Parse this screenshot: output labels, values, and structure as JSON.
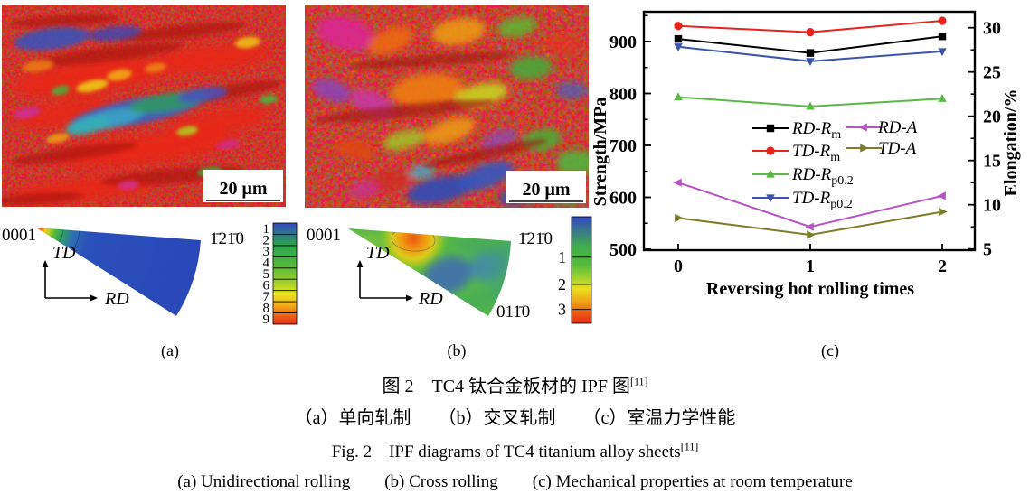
{
  "panel_a": {
    "label": "(a)",
    "scale_bar_label": "20 μm",
    "pole_figure": {
      "pole_top_left": "0001",
      "pole_top_right": "1̄21̄0",
      "axis_up": "TD",
      "axis_right": "RD",
      "colorbar_labels": [
        "1",
        "2",
        "3",
        "4",
        "5",
        "6",
        "7",
        "8",
        "9"
      ]
    }
  },
  "panel_b": {
    "label": "(b)",
    "scale_bar_label": "20 μm",
    "pole_figure": {
      "pole_top_left": "0001",
      "pole_top_right": "1̄21̄0",
      "pole_bottom_right": "011̄0",
      "axis_up": "TD",
      "axis_right": "RD",
      "colorbar_labels": [
        "1",
        "2",
        "3"
      ]
    }
  },
  "panel_c": {
    "label": "(c)"
  },
  "caption": {
    "cn_title": "图 2　TC4 钛合金板材的 IPF 图",
    "cn_ref": "[11]",
    "cn_subtitle": "（a）单向轧制　　（b）交叉轧制　　（c）室温力学性能",
    "en_title": "Fig. 2　IPF diagrams of TC4 titanium alloy sheets",
    "en_ref": "[11]",
    "en_subtitle": "(a) Unidirectional rolling　　(b) Cross rolling　　(c) Mechanical properties at room temperature"
  },
  "chart_data": {
    "type": "line",
    "x": [
      0,
      1,
      2
    ],
    "xlabel": "Reversing hot rolling times",
    "ylabel_left": "Strength/MPa",
    "ylabel_right": "Elongation/%",
    "ylim_left": [
      500,
      960
    ],
    "ylim_right": [
      5,
      31
    ],
    "yticks_left": [
      500,
      600,
      700,
      800,
      900
    ],
    "yticks_minor_left": [
      550,
      650,
      750,
      850,
      950
    ],
    "yticks_right": [
      5,
      10,
      15,
      20,
      25,
      30
    ],
    "yticks_minor_right": [
      7.5,
      12.5,
      17.5,
      22.5,
      27.5
    ],
    "grid": false,
    "legend_position": "center",
    "series": [
      {
        "name": "RD-Rm",
        "label_main": "RD-R",
        "label_sub": "m",
        "axis": "left",
        "color": "#000000",
        "marker": "square",
        "values": [
          905,
          878,
          910
        ]
      },
      {
        "name": "TD-Rm",
        "label_main": "TD-R",
        "label_sub": "m",
        "axis": "left",
        "color": "#e8231e",
        "marker": "circle",
        "values": [
          930,
          918,
          940
        ]
      },
      {
        "name": "RD-Rp0.2",
        "label_main": "RD-R",
        "label_sub": "p0.2",
        "axis": "left",
        "color": "#5ab844",
        "marker": "triangle-up",
        "values": [
          793,
          775,
          790
        ]
      },
      {
        "name": "TD-Rp0.2",
        "label_main": "TD-R",
        "label_sub": "p0.2",
        "axis": "left",
        "color": "#3b55ad",
        "marker": "triangle-down",
        "values": [
          890,
          862,
          881
        ]
      },
      {
        "name": "RD-A",
        "label_main": "RD-A",
        "label_sub": "",
        "axis": "right",
        "color": "#b953c5",
        "marker": "triangle-left",
        "values": [
          12.5,
          7.5,
          11.0
        ]
      },
      {
        "name": "TD-A",
        "label_main": "TD-A",
        "label_sub": "",
        "axis": "right",
        "color": "#7e7c2b",
        "marker": "triangle-right",
        "values": [
          8.5,
          6.6,
          9.2
        ]
      }
    ],
    "legend_col1": [
      "RD-Rm",
      "TD-Rm",
      "RD-Rp0.2",
      "TD-Rp0.2"
    ],
    "legend_col2": [
      "RD-A",
      "TD-A"
    ]
  }
}
